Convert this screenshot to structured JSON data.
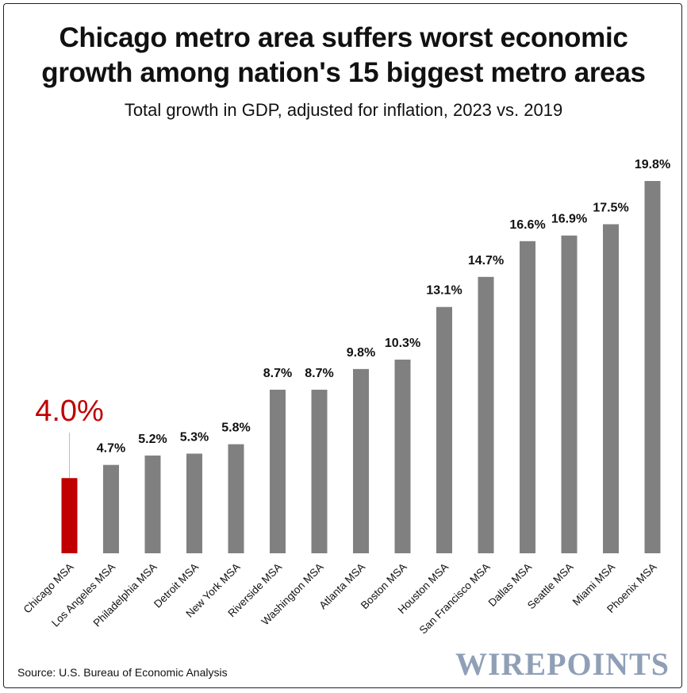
{
  "header": {
    "title_line1": "Chicago metro area suffers worst economic",
    "title_line2": "growth among nation's 15 biggest metro areas",
    "subtitle": "Total growth in GDP, adjusted for inflation, 2023 vs. 2019"
  },
  "footer": {
    "source": "Source: U.S. Bureau of Economic Analysis",
    "brand": "WIREPOINTS"
  },
  "colors": {
    "highlight": "#c00000",
    "bar": "#808080",
    "label": "#111111"
  },
  "chart_data": {
    "type": "bar",
    "title": "Chicago metro area suffers worst economic growth among nation's 15 biggest metro areas",
    "subtitle": "Total growth in GDP, adjusted for inflation, 2023 vs. 2019",
    "xlabel": "",
    "ylabel": "",
    "ylim": [
      0,
      20
    ],
    "grid": false,
    "highlight_index": 0,
    "categories": [
      "Chicago MSA",
      "Los Angeles MSA",
      "Philadelphia MSA",
      "Detroit MSA",
      "New York MSA",
      "Riverside MSA",
      "Washington MSA",
      "Atlanta MSA",
      "Boston MSA",
      "Houston MSA",
      "San Francisco MSA",
      "Dallas MSA",
      "Seattle MSA",
      "Miami MSA",
      "Phoenix MSA"
    ],
    "values": [
      4.0,
      4.7,
      5.2,
      5.3,
      5.8,
      8.7,
      8.7,
      9.8,
      10.3,
      13.1,
      14.7,
      16.6,
      16.9,
      17.5,
      19.8
    ],
    "labels": [
      "4.0%",
      "4.7%",
      "5.2%",
      "5.3%",
      "5.8%",
      "8.7%",
      "8.7%",
      "9.8%",
      "10.3%",
      "13.1%",
      "14.7%",
      "16.6%",
      "16.9%",
      "17.5%",
      "19.8%"
    ]
  }
}
